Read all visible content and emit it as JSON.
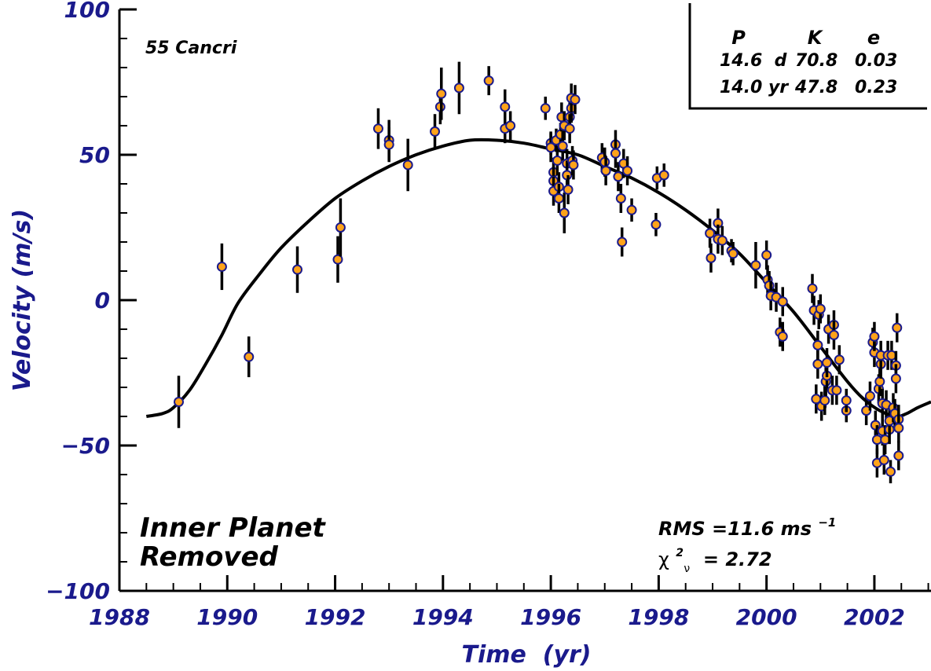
{
  "chart_data": {
    "type": "scatter",
    "xlabel": "Time  (yr)",
    "ylabel": "Velocity (m/s)",
    "xlim": [
      1988,
      2003.05
    ],
    "ylim": [
      -100,
      100
    ],
    "x_ticks": [
      "1988",
      "1990",
      "1992",
      "1994",
      "1996",
      "1998",
      "2000",
      "2002"
    ],
    "y_ticks": [
      "100",
      "50",
      "0",
      "−50",
      "−100"
    ],
    "star_label": "55 Cancri",
    "annotation": {
      "line1": "Inner Planet",
      "line2": "Removed"
    },
    "stats": {
      "rms_label": "RMS =11.6 ms",
      "rms_sup": "−1",
      "chi_prefix": "χ",
      "chi_sup": "2",
      "chi_sub": "ν",
      "chi_value": " = 2.72"
    },
    "table": {
      "headers": [
        "P",
        "K",
        "e"
      ],
      "rows": [
        [
          "14.6  d",
          "70.8",
          "0.03"
        ],
        [
          "14.0 yr",
          "47.8",
          "0.23"
        ]
      ]
    },
    "colors": {
      "point_fill": "#ffa31a",
      "point_edge": "#1a1a8c",
      "axis_text": "#1a1a8c",
      "curve": "#000000"
    },
    "curve": {
      "name": "",
      "points": [
        [
          1988.5,
          -40
        ],
        [
          1988.8,
          -39
        ],
        [
          1989.0,
          -37
        ],
        [
          1989.3,
          -31
        ],
        [
          1989.6,
          -22
        ],
        [
          1989.9,
          -12
        ],
        [
          1990.2,
          -1
        ],
        [
          1990.6,
          9
        ],
        [
          1991.0,
          18
        ],
        [
          1991.5,
          27
        ],
        [
          1992.0,
          35
        ],
        [
          1992.5,
          41
        ],
        [
          1993.0,
          46
        ],
        [
          1993.5,
          50
        ],
        [
          1994.0,
          53
        ],
        [
          1994.5,
          55
        ],
        [
          1995.0,
          55
        ],
        [
          1995.5,
          54
        ],
        [
          1996.0,
          52
        ],
        [
          1996.5,
          50
        ],
        [
          1997.0,
          46
        ],
        [
          1997.5,
          42
        ],
        [
          1998.0,
          37
        ],
        [
          1998.5,
          31
        ],
        [
          1999.0,
          24
        ],
        [
          1999.5,
          16
        ],
        [
          2000.0,
          6
        ],
        [
          2000.5,
          -4
        ],
        [
          2001.0,
          -16
        ],
        [
          2001.5,
          -28
        ],
        [
          2001.8,
          -34
        ],
        [
          2002.1,
          -38
        ],
        [
          2002.4,
          -40
        ],
        [
          2002.6,
          -39
        ],
        [
          2002.8,
          -37
        ],
        [
          2003.05,
          -35
        ]
      ]
    },
    "points": [
      {
        "x": 1989.1,
        "y": -35,
        "err": 9
      },
      {
        "x": 1989.9,
        "y": 11.5,
        "err": 8
      },
      {
        "x": 1990.4,
        "y": -19.5,
        "err": 7
      },
      {
        "x": 1991.3,
        "y": 10.5,
        "err": 8
      },
      {
        "x": 1992.05,
        "y": 14,
        "err": 8
      },
      {
        "x": 1992.1,
        "y": 25,
        "err": 10
      },
      {
        "x": 1992.8,
        "y": 59,
        "err": 7
      },
      {
        "x": 1993.0,
        "y": 55,
        "err": 7
      },
      {
        "x": 1993.0,
        "y": 53.5,
        "err": 6
      },
      {
        "x": 1993.35,
        "y": 46.5,
        "err": 9
      },
      {
        "x": 1993.85,
        "y": 58,
        "err": 6
      },
      {
        "x": 1993.95,
        "y": 66.5,
        "err": 6
      },
      {
        "x": 1993.97,
        "y": 71,
        "err": 9
      },
      {
        "x": 1994.3,
        "y": 73,
        "err": 9
      },
      {
        "x": 1994.85,
        "y": 75.5,
        "err": 5
      },
      {
        "x": 1995.15,
        "y": 66.5,
        "err": 6
      },
      {
        "x": 1995.15,
        "y": 59,
        "err": 5
      },
      {
        "x": 1995.25,
        "y": 60,
        "err": 5
      },
      {
        "x": 1995.9,
        "y": 66,
        "err": 4
      },
      {
        "x": 1996.0,
        "y": 54,
        "err": 4
      },
      {
        "x": 1996.0,
        "y": 52.5,
        "err": 5
      },
      {
        "x": 1996.05,
        "y": 44,
        "err": 5
      },
      {
        "x": 1996.05,
        "y": 41,
        "err": 5
      },
      {
        "x": 1996.05,
        "y": 37.5,
        "err": 5
      },
      {
        "x": 1996.1,
        "y": 55,
        "err": 4
      },
      {
        "x": 1996.12,
        "y": 48,
        "err": 5
      },
      {
        "x": 1996.15,
        "y": 39,
        "err": 5
      },
      {
        "x": 1996.15,
        "y": 35,
        "err": 5
      },
      {
        "x": 1996.18,
        "y": 57,
        "err": 4
      },
      {
        "x": 1996.2,
        "y": 63,
        "err": 5
      },
      {
        "x": 1996.22,
        "y": 53,
        "err": 5
      },
      {
        "x": 1996.25,
        "y": 60,
        "err": 5
      },
      {
        "x": 1996.25,
        "y": 30,
        "err": 7
      },
      {
        "x": 1996.3,
        "y": 47,
        "err": 5
      },
      {
        "x": 1996.3,
        "y": 43,
        "err": 5
      },
      {
        "x": 1996.32,
        "y": 38,
        "err": 5
      },
      {
        "x": 1996.35,
        "y": 63,
        "err": 5
      },
      {
        "x": 1996.35,
        "y": 59,
        "err": 5
      },
      {
        "x": 1996.38,
        "y": 66,
        "err": 5
      },
      {
        "x": 1996.38,
        "y": 69.5,
        "err": 5
      },
      {
        "x": 1996.4,
        "y": 48,
        "err": 5
      },
      {
        "x": 1996.42,
        "y": 46.5,
        "err": 5
      },
      {
        "x": 1996.45,
        "y": 69,
        "err": 5
      },
      {
        "x": 1996.95,
        "y": 49,
        "err": 5
      },
      {
        "x": 1997.0,
        "y": 47.5,
        "err": 5
      },
      {
        "x": 1997.02,
        "y": 44.5,
        "err": 5
      },
      {
        "x": 1997.2,
        "y": 53.5,
        "err": 5
      },
      {
        "x": 1997.2,
        "y": 50.5,
        "err": 5
      },
      {
        "x": 1997.25,
        "y": 42.5,
        "err": 5
      },
      {
        "x": 1997.3,
        "y": 35,
        "err": 5
      },
      {
        "x": 1997.32,
        "y": 20,
        "err": 5
      },
      {
        "x": 1997.35,
        "y": 47,
        "err": 5
      },
      {
        "x": 1997.42,
        "y": 44.5,
        "err": 5
      },
      {
        "x": 1997.5,
        "y": 31,
        "err": 4
      },
      {
        "x": 1997.95,
        "y": 26,
        "err": 4
      },
      {
        "x": 1997.97,
        "y": 42,
        "err": 4
      },
      {
        "x": 1998.1,
        "y": 43,
        "err": 4
      },
      {
        "x": 1998.95,
        "y": 23,
        "err": 5
      },
      {
        "x": 1998.97,
        "y": 14.5,
        "err": 5
      },
      {
        "x": 1999.1,
        "y": 26.5,
        "err": 5
      },
      {
        "x": 1999.1,
        "y": 21,
        "err": 5
      },
      {
        "x": 1999.18,
        "y": 20.5,
        "err": 5
      },
      {
        "x": 1999.35,
        "y": 17,
        "err": 4
      },
      {
        "x": 1999.38,
        "y": 16,
        "err": 4
      },
      {
        "x": 1999.8,
        "y": 12,
        "err": 8
      },
      {
        "x": 2000.0,
        "y": 15.5,
        "err": 5
      },
      {
        "x": 2000.02,
        "y": 7,
        "err": 5
      },
      {
        "x": 2000.05,
        "y": 5,
        "err": 5
      },
      {
        "x": 2000.08,
        "y": 1.5,
        "err": 5
      },
      {
        "x": 2000.18,
        "y": 1,
        "err": 5
      },
      {
        "x": 2000.25,
        "y": -11,
        "err": 5
      },
      {
        "x": 2000.3,
        "y": -12.5,
        "err": 5
      },
      {
        "x": 2000.3,
        "y": -0.5,
        "err": 5
      },
      {
        "x": 2000.85,
        "y": 4,
        "err": 5
      },
      {
        "x": 2000.88,
        "y": -3.5,
        "err": 5
      },
      {
        "x": 2000.92,
        "y": -34,
        "err": 5
      },
      {
        "x": 2000.95,
        "y": -22,
        "err": 5
      },
      {
        "x": 2000.95,
        "y": -15.5,
        "err": 5
      },
      {
        "x": 2000.97,
        "y": -5,
        "err": 5
      },
      {
        "x": 2001.0,
        "y": -3,
        "err": 5
      },
      {
        "x": 2001.02,
        "y": -36.5,
        "err": 5
      },
      {
        "x": 2001.08,
        "y": -34.5,
        "err": 5
      },
      {
        "x": 2001.1,
        "y": -28,
        "err": 5
      },
      {
        "x": 2001.12,
        "y": -26,
        "err": 5
      },
      {
        "x": 2001.12,
        "y": -21.5,
        "err": 5
      },
      {
        "x": 2001.15,
        "y": -10,
        "err": 5
      },
      {
        "x": 2001.22,
        "y": -31,
        "err": 5
      },
      {
        "x": 2001.25,
        "y": -8.5,
        "err": 5
      },
      {
        "x": 2001.25,
        "y": -12,
        "err": 5
      },
      {
        "x": 2001.3,
        "y": -31,
        "err": 5
      },
      {
        "x": 2001.35,
        "y": -20.5,
        "err": 5
      },
      {
        "x": 2001.48,
        "y": -38,
        "err": 4
      },
      {
        "x": 2001.48,
        "y": -34.5,
        "err": 4
      },
      {
        "x": 2001.85,
        "y": -38,
        "err": 5
      },
      {
        "x": 2001.92,
        "y": -33,
        "err": 5
      },
      {
        "x": 2001.97,
        "y": -14.5,
        "err": 5
      },
      {
        "x": 2002.0,
        "y": -18,
        "err": 5
      },
      {
        "x": 2002.0,
        "y": -12.5,
        "err": 5
      },
      {
        "x": 2002.02,
        "y": -43,
        "err": 5
      },
      {
        "x": 2002.05,
        "y": -56,
        "err": 5
      },
      {
        "x": 2002.05,
        "y": -48,
        "err": 5
      },
      {
        "x": 2002.08,
        "y": -30.5,
        "err": 5
      },
      {
        "x": 2002.1,
        "y": -28,
        "err": 5
      },
      {
        "x": 2002.12,
        "y": -22,
        "err": 5
      },
      {
        "x": 2002.12,
        "y": -19,
        "err": 5
      },
      {
        "x": 2002.15,
        "y": -35.5,
        "err": 5
      },
      {
        "x": 2002.15,
        "y": -45,
        "err": 5
      },
      {
        "x": 2002.18,
        "y": -55,
        "err": 5
      },
      {
        "x": 2002.2,
        "y": -48,
        "err": 5
      },
      {
        "x": 2002.22,
        "y": -36,
        "err": 5
      },
      {
        "x": 2002.25,
        "y": -19,
        "err": 5
      },
      {
        "x": 2002.28,
        "y": -44.5,
        "err": 5
      },
      {
        "x": 2002.28,
        "y": -41.5,
        "err": 5
      },
      {
        "x": 2002.3,
        "y": -59,
        "err": 4
      },
      {
        "x": 2002.32,
        "y": -19,
        "err": 5
      },
      {
        "x": 2002.35,
        "y": -37,
        "err": 5
      },
      {
        "x": 2002.38,
        "y": -39,
        "err": 5
      },
      {
        "x": 2002.4,
        "y": -22.5,
        "err": 5
      },
      {
        "x": 2002.4,
        "y": -27,
        "err": 5
      },
      {
        "x": 2002.42,
        "y": -9.5,
        "err": 5
      },
      {
        "x": 2002.45,
        "y": -41,
        "err": 5
      },
      {
        "x": 2002.45,
        "y": -44,
        "err": 5
      },
      {
        "x": 2002.45,
        "y": -53.5,
        "err": 5
      }
    ]
  }
}
